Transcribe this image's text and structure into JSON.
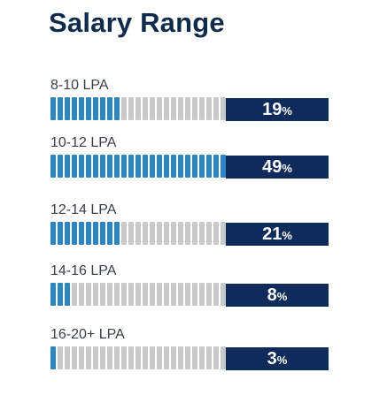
{
  "title": "Salary Range",
  "colors": {
    "filled": "#2c86c1",
    "empty": "#c9c9c9",
    "box": "#0f2b5c",
    "title": "#0f2b4a"
  },
  "chart_data": {
    "type": "bar",
    "title": "Salary Range",
    "categories": [
      "8-10 LPA",
      "10-12 LPA",
      "12-14 LPA",
      "14-16 LPA",
      "16-20+ LPA"
    ],
    "values": [
      19,
      49,
      21,
      8,
      3
    ],
    "unit": "%",
    "segments_total": 25,
    "segments_filled": [
      10,
      25,
      10,
      3,
      1
    ]
  }
}
